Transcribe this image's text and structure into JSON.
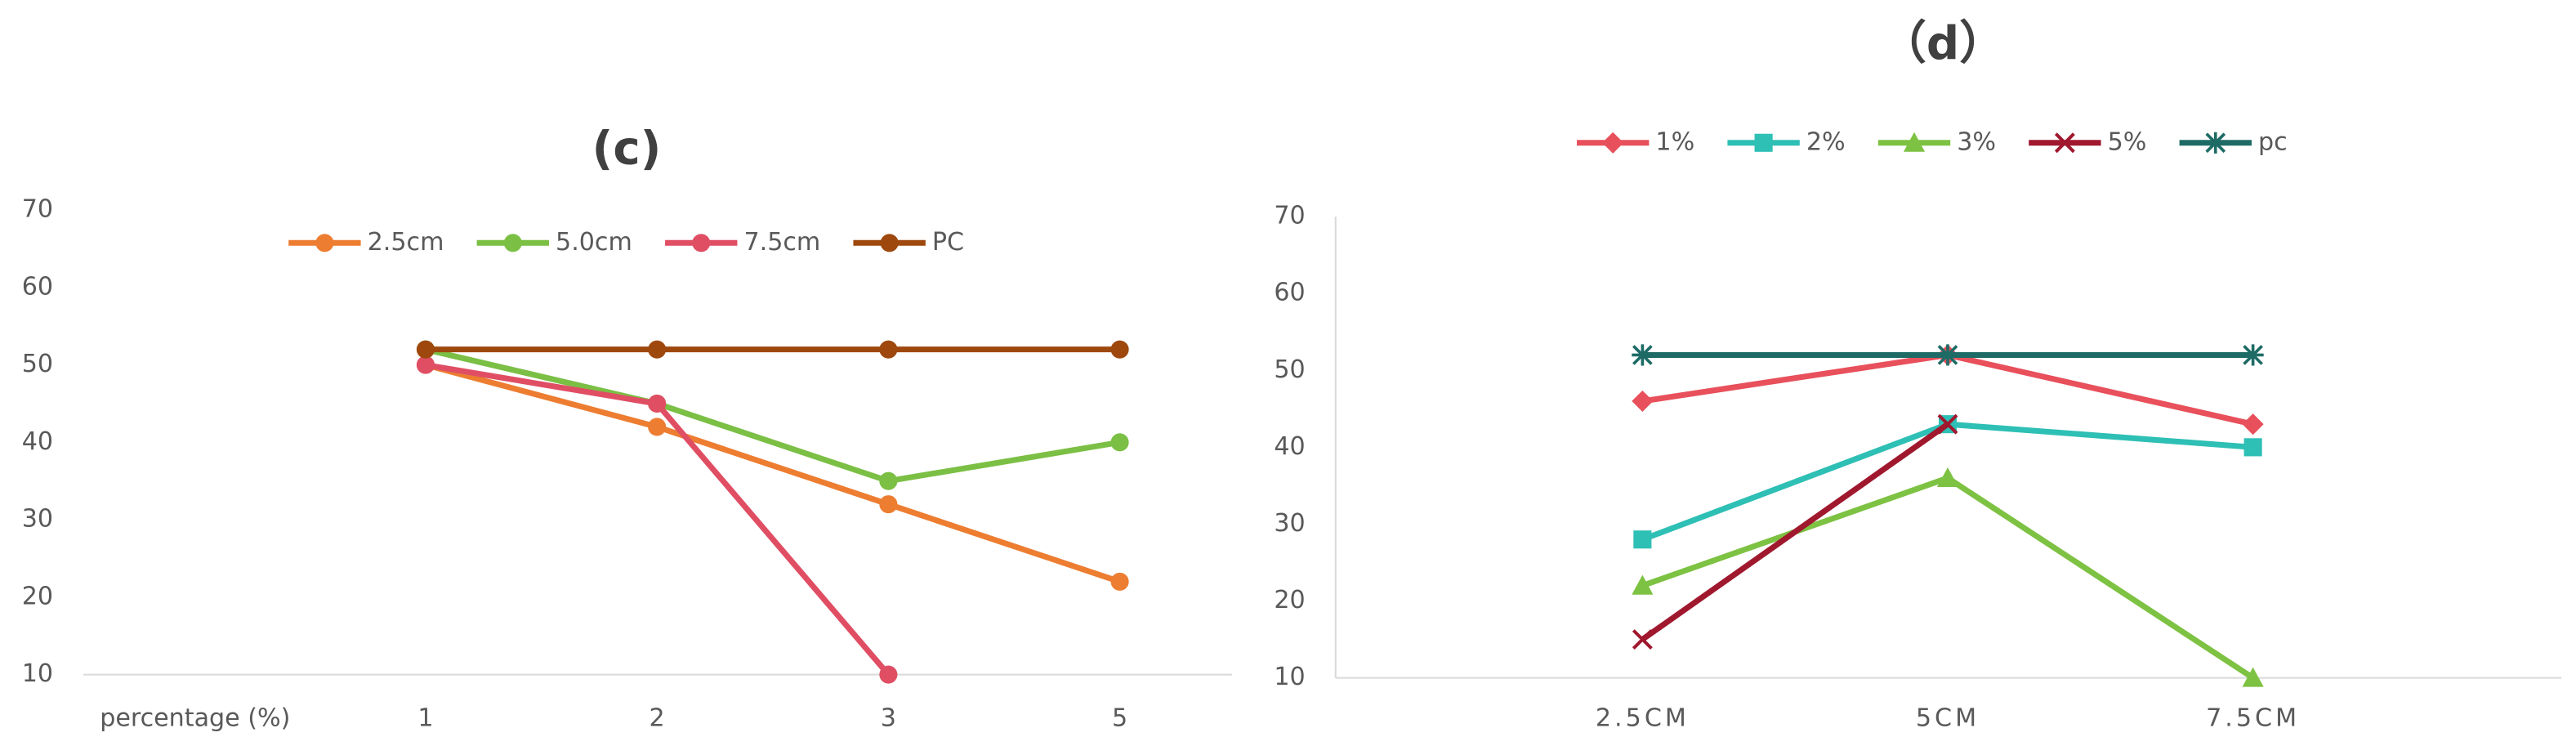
{
  "chart_data": [
    {
      "type": "line",
      "title": "(c)",
      "x_label": "percentage (%)",
      "categories": [
        "1",
        "2",
        "3",
        "5"
      ],
      "series": [
        {
          "name": "2.5cm",
          "color": "#ED7D31",
          "marker": "circle",
          "values": [
            50,
            42,
            32,
            22
          ]
        },
        {
          "name": "5.0cm",
          "color": "#7BBF45",
          "marker": "circle",
          "values": [
            52,
            45,
            35,
            40
          ]
        },
        {
          "name": "7.5cm",
          "color": "#E04E64",
          "marker": "circle",
          "values": [
            50,
            45,
            10,
            null
          ]
        },
        {
          "name": "PC",
          "color": "#9E480E",
          "marker": "circle",
          "values": [
            52,
            52,
            52,
            52
          ]
        }
      ],
      "ylim": [
        10,
        70
      ],
      "yticks": [
        10,
        20,
        30,
        40,
        50,
        60,
        70
      ]
    },
    {
      "type": "line",
      "title": "（d）",
      "categories": [
        "2.5CM",
        "5CM",
        "7.5CM"
      ],
      "series": [
        {
          "name": "1%",
          "color": "#E8505B",
          "marker": "diamond",
          "values": [
            46,
            52,
            43
          ]
        },
        {
          "name": "2%",
          "color": "#2EBFB5",
          "marker": "square",
          "values": [
            28,
            43,
            40
          ]
        },
        {
          "name": "3%",
          "color": "#7DC242",
          "marker": "triangle",
          "values": [
            22,
            36,
            10
          ]
        },
        {
          "name": "5%",
          "color": "#A0182E",
          "marker": "x",
          "values": [
            15,
            43,
            null
          ]
        },
        {
          "name": "pc",
          "color": "#1E6B66",
          "marker": "asterisk",
          "values": [
            52,
            52,
            52
          ]
        }
      ],
      "ylim": [
        10,
        70
      ],
      "yticks": [
        10,
        20,
        30,
        40,
        50,
        60,
        70
      ]
    }
  ]
}
